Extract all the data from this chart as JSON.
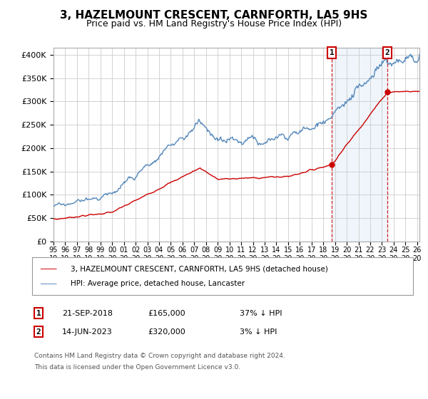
{
  "title": "3, HAZELMOUNT CRESCENT, CARNFORTH, LA5 9HS",
  "subtitle": "Price paid vs. HM Land Registry's House Price Index (HPI)",
  "ylabel_ticks": [
    "£0",
    "£50K",
    "£100K",
    "£150K",
    "£200K",
    "£250K",
    "£300K",
    "£350K",
    "£400K"
  ],
  "ytick_values": [
    0,
    50000,
    100000,
    150000,
    200000,
    250000,
    300000,
    350000,
    400000
  ],
  "ylim": [
    0,
    415000
  ],
  "xlim_start": 1995.3,
  "xlim_end": 2026.2,
  "hpi_color": "#5588bb",
  "price_color": "#cc0000",
  "background_color": "#ffffff",
  "grid_color": "#cccccc",
  "legend_label_hpi": "HPI: Average price, detached house, Lancaster",
  "legend_label_price": "3, HAZELMOUNT CRESCENT, CARNFORTH, LA5 9HS (detached house)",
  "sale1_date": "21-SEP-2018",
  "sale1_price": 165000,
  "sale1_pct": "37% ↓ HPI",
  "sale2_date": "14-JUN-2023",
  "sale2_price": 320000,
  "sale2_pct": "3% ↓ HPI",
  "sale1_x": 2018.72,
  "sale2_x": 2023.45,
  "footnote1": "Contains HM Land Registry data © Crown copyright and database right 2024.",
  "footnote2": "This data is licensed under the Open Government Licence v3.0.",
  "title_fontsize": 11,
  "subtitle_fontsize": 9
}
